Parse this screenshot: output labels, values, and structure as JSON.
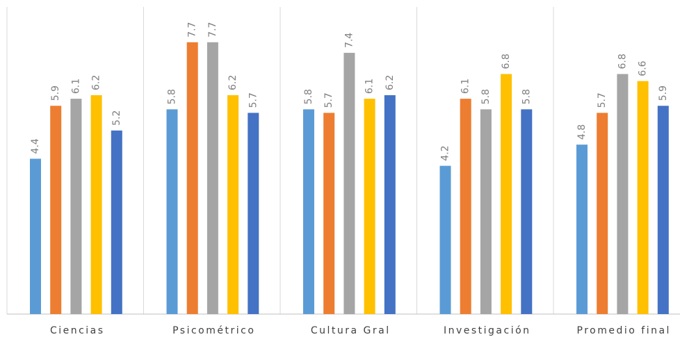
{
  "chart_data": {
    "type": "bar",
    "categories": [
      "Ciencias",
      "Psicométrico",
      "Cultura Gral",
      "Investigación",
      "Promedio final"
    ],
    "series": [
      {
        "values": [
          4.4,
          5.8,
          5.8,
          4.2,
          4.8
        ],
        "color": "#5b9bd5"
      },
      {
        "values": [
          5.9,
          7.7,
          5.7,
          6.1,
          5.7
        ],
        "color": "#ed7d31"
      },
      {
        "values": [
          6.1,
          7.7,
          7.4,
          5.8,
          6.8
        ],
        "color": "#a5a5a5"
      },
      {
        "values": [
          6.2,
          6.2,
          6.1,
          6.8,
          6.6
        ],
        "color": "#ffc000"
      },
      {
        "values": [
          5.2,
          5.7,
          6.2,
          5.8,
          5.9
        ],
        "color": "#4472c4"
      }
    ],
    "title": "",
    "xlabel": "",
    "ylabel": "",
    "ylim": [
      0,
      8.7
    ],
    "grid": false,
    "legend": "none",
    "data_labels": true
  }
}
